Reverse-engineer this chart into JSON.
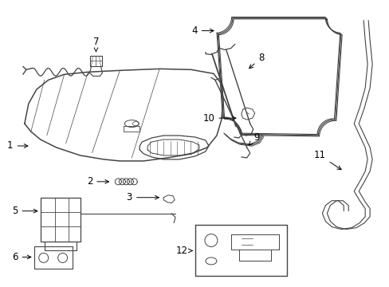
{
  "background_color": "#ffffff",
  "line_color": "#444444",
  "label_color": "#000000",
  "fig_width": 4.89,
  "fig_height": 3.6,
  "dpi": 100
}
